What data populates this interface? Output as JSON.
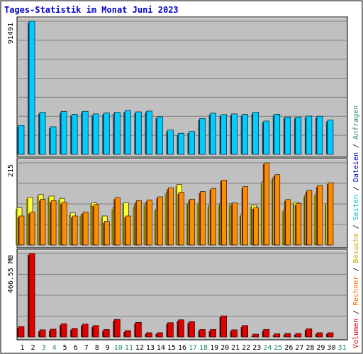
{
  "title": "Tages-Statistik im Monat Juni 2023",
  "colors": {
    "title": "#0000cc",
    "panel_bg": "#c0c0c0",
    "grid": "#808080",
    "anfragen_front": "#00ccff",
    "anfragen_side": "#0a4a6a",
    "besuche_front": "#ffff33",
    "besuche_side": "#888800",
    "rechner_front": "#ff8c00",
    "rechner_side": "#7a3300",
    "volumen_front": "#e00000",
    "volumen_side": "#600000",
    "weekend_label": "#2a8a5a",
    "weekday_label": "#000000"
  },
  "right_labels": [
    {
      "text": "Anfragen",
      "color": "#2a8a5a"
    },
    {
      "text": "Dateien",
      "color": "#0000cc"
    },
    {
      "text": "Seiten",
      "color": "#00bbdd"
    },
    {
      "text": "Besuche",
      "color": "#bbaa00"
    },
    {
      "text": "Rechner",
      "color": "#ff6600"
    },
    {
      "text": "Volumen",
      "color": "#cc0000"
    }
  ],
  "separator": "/",
  "chart_data": {
    "type": "bar",
    "categories": [
      "1",
      "2",
      "3",
      "4",
      "5",
      "6",
      "7",
      "8",
      "9",
      "10",
      "11",
      "12",
      "13",
      "14",
      "15",
      "16",
      "17",
      "18",
      "19",
      "20",
      "21",
      "22",
      "23",
      "24",
      "25",
      "26",
      "27",
      "28",
      "29",
      "30",
      "31"
    ],
    "weekend_days": [
      "3",
      "4",
      "10",
      "11",
      "17",
      "18",
      "24",
      "25",
      "31"
    ],
    "panels": [
      {
        "name": "Anfragen",
        "max_label": "91491",
        "max": 91491,
        "series": [
          {
            "name": "Anfragen",
            "values": [
              19800,
              91491,
              28900,
              19000,
              29500,
              27500,
              29600,
              27800,
              28500,
              28900,
              30100,
              29200,
              29700,
              25800,
              16700,
              14500,
              15700,
              24600,
              28300,
              27300,
              27800,
              27500,
              28900,
              22900,
              27600,
              25700,
              25700,
              26300,
              26200,
              23600,
              0
            ]
          }
        ]
      },
      {
        "name": "Besuche / Rechner",
        "max_label": "215",
        "max": 215,
        "series": [
          {
            "name": "Besuche",
            "values": [
              98,
              125,
              132,
              128,
              122,
              84,
              80,
              110,
              76,
              98,
              110,
              104,
              108,
              94,
              138,
              158,
              108,
              110,
              104,
              108,
              108,
              80,
              104,
              166,
              176,
              92,
              112,
              130,
              134,
              108,
              0
            ]
          },
          {
            "name": "Rechner",
            "values": [
              76,
              86,
              120,
              116,
              112,
              76,
              86,
              106,
              62,
              124,
              76,
              116,
              118,
              126,
              150,
              138,
              120,
              140,
              148,
              170,
              110,
              153,
              98,
              215,
              184,
              119,
              109,
              143,
              156,
              163,
              0
            ]
          }
        ]
      },
      {
        "name": "Volumen",
        "max_label": "466.55 MB",
        "max": 466.55,
        "series": [
          {
            "name": "Volumen",
            "values": [
              58,
              466,
              40,
              44,
              74,
              48,
              72,
              64,
              42,
              98,
              36,
              82,
              24,
              24,
              80,
              96,
              86,
              42,
              42,
              118,
              40,
              64,
              16,
              42,
              18,
              20,
              20,
              46,
              24,
              24,
              0
            ]
          }
        ]
      }
    ]
  }
}
